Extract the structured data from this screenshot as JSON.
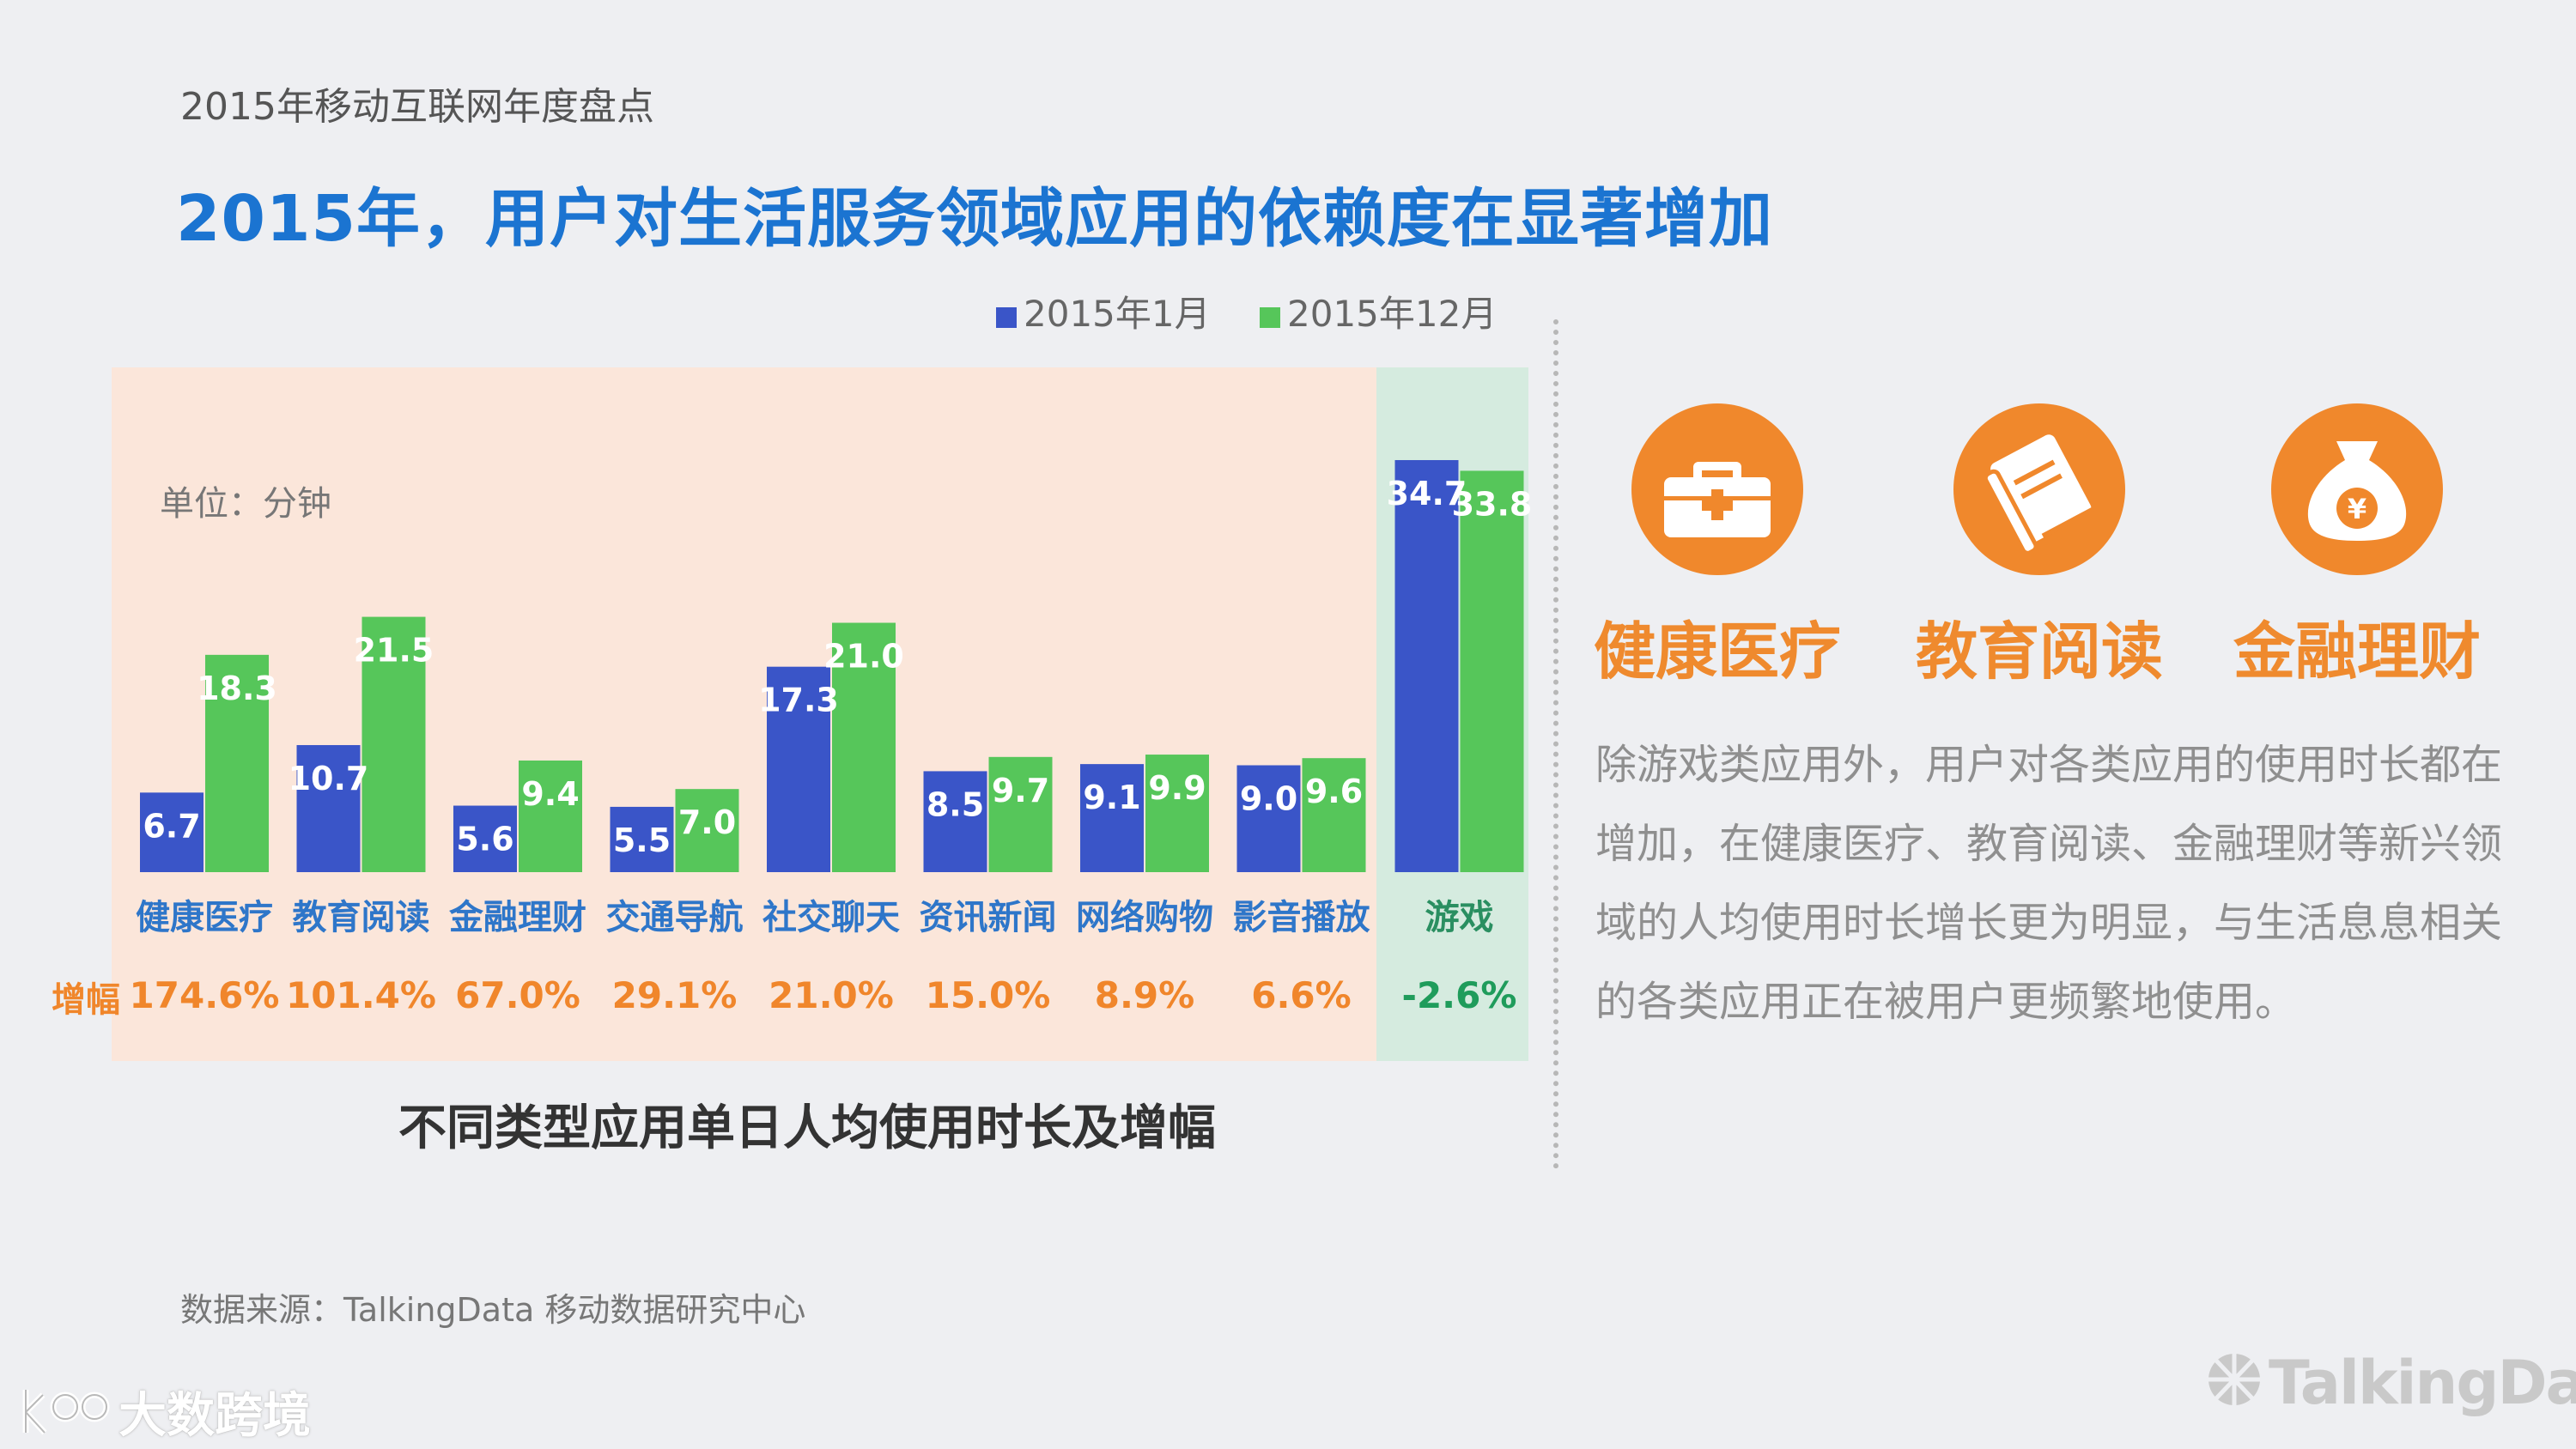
{
  "header": {
    "subtitle": "2015年移动互联网年度盘点",
    "title": "2015年，用户对生活服务领域应用的依赖度在显著增加"
  },
  "chart_data": {
    "type": "bar",
    "title": "不同类型应用单日人均使用时长及增幅",
    "unit_label": "单位：分钟",
    "categories": [
      "健康医疗",
      "教育阅读",
      "金融理财",
      "交通导航",
      "社交聊天",
      "资讯新闻",
      "网络购物",
      "影音播放",
      "游戏"
    ],
    "series": [
      {
        "name": "2015年1月",
        "color": "#3a55c8",
        "values": [
          6.7,
          10.7,
          5.6,
          5.5,
          17.3,
          8.5,
          9.1,
          9.0,
          34.7
        ]
      },
      {
        "name": "2015年12月",
        "color": "#56c65a",
        "values": [
          18.3,
          21.5,
          9.4,
          7.0,
          21.0,
          9.7,
          9.9,
          9.6,
          33.8
        ]
      }
    ],
    "growth_label": "增幅",
    "growth": [
      "174.6%",
      "101.4%",
      "67.0%",
      "29.1%",
      "21.0%",
      "15.0%",
      "8.9%",
      "6.6%",
      "-2.6%"
    ],
    "value_labels_jan": [
      "6.7",
      "10.7",
      "5.6",
      "5.5",
      "17.3",
      "8.5",
      "9.1",
      "9.0",
      "34.7"
    ],
    "value_labels_dec": [
      "18.3",
      "21.5",
      "9.4",
      "7.0",
      "21.0",
      "9.7",
      "9.9",
      "9.6",
      "33.8"
    ],
    "ylim": [
      0,
      36
    ],
    "legend": "top-center",
    "highlight_category": "游戏",
    "colors": {
      "background_main": "#fbe6da",
      "background_highlight": "#d5ebdf",
      "growth_text": "#f0862b",
      "growth_highlight_text": "#1f9c5b",
      "category_text": "#2e76c9",
      "highlight_category_text": "#2a8f61"
    }
  },
  "side_panel": {
    "icons": [
      {
        "icon": "medical-kit-icon",
        "label": "健康医疗"
      },
      {
        "icon": "book-icon",
        "label": "教育阅读"
      },
      {
        "icon": "money-bag-icon",
        "label": "金融理财"
      }
    ],
    "description": "除游戏类应用外，用户对各类应用的使用时长都在增加，在健康医疗、教育阅读、金融理财等新兴领域的人均使用时长增长更为明显，与生活息息相关的各类应用正在被用户更频繁地使用。",
    "accent_color": "#f0882c"
  },
  "footer": {
    "source": "数据来源：TalkingData 移动数据研究中心",
    "logo_left": "大数跨境",
    "logo_right": "TalkingData"
  }
}
